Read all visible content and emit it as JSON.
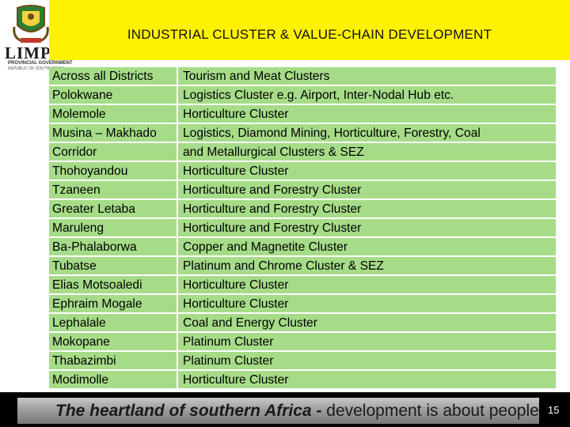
{
  "header": {
    "title": "INDUSTRIAL CLUSTER & VALUE-CHAIN DEVELOPMENT"
  },
  "logo": {
    "name": "LIMPOPO",
    "subtitle": "PROVINCIAL GOVERNMENT",
    "tagline": "REPUBLIC OF SOUTH AFRICA"
  },
  "table": {
    "rows": [
      {
        "district": "Across all Districts",
        "cluster": "Tourism and Meat Clusters"
      },
      {
        "district": "Polokwane",
        "cluster": "Logistics Cluster e.g. Airport, Inter-Nodal Hub etc."
      },
      {
        "district": "Molemole",
        "cluster": "Horticulture Cluster"
      },
      {
        "district": "Musina – Makhado",
        "cluster": "Logistics, Diamond Mining, Horticulture, Forestry, Coal"
      },
      {
        "district": "Corridor",
        "cluster": "and Metallurgical Clusters & SEZ"
      },
      {
        "district": "Thohoyandou",
        "cluster": "Horticulture Cluster"
      },
      {
        "district": "Tzaneen",
        "cluster": "Horticulture and Forestry Cluster"
      },
      {
        "district": "Greater Letaba",
        "cluster": "Horticulture and Forestry Cluster"
      },
      {
        "district": "Maruleng",
        "cluster": "Horticulture and Forestry Cluster"
      },
      {
        "district": "Ba-Phalaborwa",
        "cluster": "Copper and Magnetite Cluster"
      },
      {
        "district": "Tubatse",
        "cluster": "Platinum and Chrome Cluster & SEZ"
      },
      {
        "district": "Elias Motsoaledi",
        "cluster": "Horticulture Cluster"
      },
      {
        "district": "Ephraim Mogale",
        "cluster": "Horticulture Cluster"
      },
      {
        "district": "Lephalale",
        "cluster": "Coal and Energy Cluster"
      },
      {
        "district": "Mokopane",
        "cluster": "Platinum Cluster"
      },
      {
        "district": "Thabazimbi",
        "cluster": "Platinum Cluster"
      },
      {
        "district": "Modimolle",
        "cluster": "Horticulture Cluster"
      }
    ]
  },
  "footer": {
    "slogan_bold": "The heartland of southern Africa - ",
    "slogan_rest": "development is about people",
    "page_number": "15"
  },
  "colors": {
    "title_band": "#fff200",
    "table_fill": "#a6dc88",
    "footer": "#000000"
  },
  "icons": [
    "coat-of-arms-icon"
  ]
}
